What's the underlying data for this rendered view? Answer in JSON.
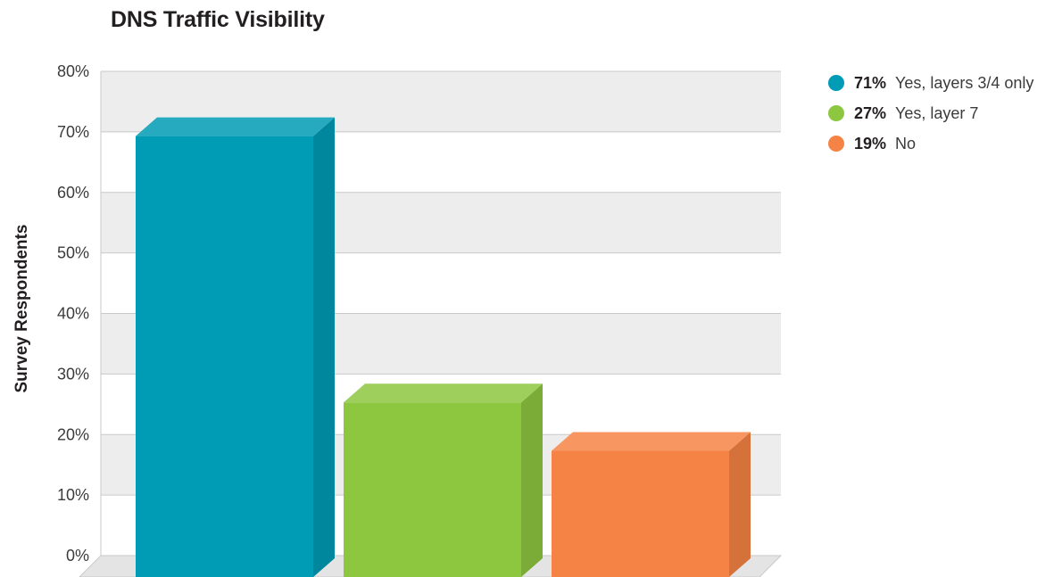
{
  "chart_data": {
    "type": "bar",
    "title": "DNS Traffic Visibility",
    "xlabel": "",
    "ylabel": "Survey Respondents",
    "ylim": [
      0,
      80
    ],
    "y_ticks": [
      "0%",
      "10%",
      "20%",
      "30%",
      "40%",
      "50%",
      "60%",
      "70%",
      "80%"
    ],
    "tick_values": [
      0,
      10,
      20,
      30,
      40,
      50,
      60,
      70,
      80
    ],
    "categories": [
      "Yes, layers 3/4 only",
      "Yes, layer 7",
      "No"
    ],
    "values": [
      71,
      27,
      19
    ],
    "colors": [
      "#009bb5",
      "#8dc63f",
      "#f58345"
    ],
    "grid": true,
    "legend_position": "top-right",
    "legend": [
      {
        "value": "71%",
        "label": "Yes, layers 3/4 only",
        "color": "#009bb5"
      },
      {
        "value": "27%",
        "label": "Yes, layer 7",
        "color": "#8dc63f"
      },
      {
        "value": "19%",
        "label": "No",
        "color": "#f58345"
      }
    ]
  }
}
